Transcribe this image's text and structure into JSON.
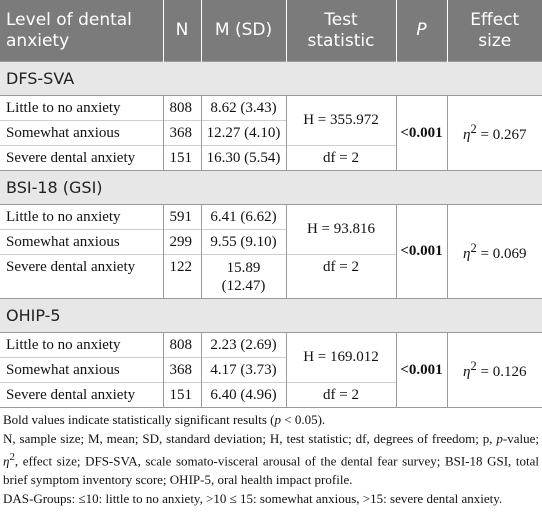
{
  "header": {
    "col_level": "Level of dental anxiety",
    "col_n": "N",
    "col_msd": "M (SD)",
    "col_test": "Test statistic",
    "col_p": "P",
    "col_effect": "Effect size"
  },
  "sections": [
    {
      "title": "DFS-SVA",
      "rows": [
        {
          "level": "Little to no anxiety",
          "n": "808",
          "msd": "8.62 (3.43)"
        },
        {
          "level": "Somewhat anxious",
          "n": "368",
          "msd": "12.27 (4.10)"
        },
        {
          "level": "Severe dental anxiety",
          "n": "151",
          "msd": "16.30 (5.54)"
        }
      ],
      "h": "H = 355.972",
      "df": "df = 2",
      "p": "<0.001",
      "eta_symbol": "η",
      "eta_value": "= 0.267"
    },
    {
      "title": "BSI-18 (GSI)",
      "rows": [
        {
          "level": "Little to no anxiety",
          "n": "591",
          "msd": "6.41 (6.62)"
        },
        {
          "level": "Somewhat anxious",
          "n": "299",
          "msd": "9.55 (9.10)"
        },
        {
          "level": "Severe dental anxiety",
          "n": "122",
          "msd_line1": "15.89",
          "msd_line2": "(12.47)"
        }
      ],
      "h": "H = 93.816",
      "df": "df = 2",
      "p": "<0.001",
      "eta_symbol": "η",
      "eta_value": "= 0.069"
    },
    {
      "title": "OHIP-5",
      "rows": [
        {
          "level": "Little to no anxiety",
          "n": "808",
          "msd": "2.23 (2.69)"
        },
        {
          "level": "Somewhat anxious",
          "n": "368",
          "msd": "4.17 (3.73)"
        },
        {
          "level": "Severe dental anxiety",
          "n": "151",
          "msd": "6.40 (4.96)"
        }
      ],
      "h": "H = 169.012",
      "df": "df = 2",
      "p": "<0.001",
      "eta_symbol": "η",
      "eta_value": "= 0.126"
    }
  ],
  "notes": {
    "bold_note_a": "Bold values indicate statistically significant results (",
    "bold_note_p": "p",
    "bold_note_b": " < 0.05).",
    "abbrev_a": "N, sample size; M, mean; SD, standard deviation; H, test statistic; df, degrees of freedom; p,",
    "abbrev_p": "p",
    "abbrev_b": "-value;",
    "abbrev_eta": "η",
    "abbrev_c": ", effect size; DFS-SVA, scale somato-visceral arousal of the dental fear survey; BSI-18 GSI, total brief symptom inventory score; OHIP-5, oral health impact profile.",
    "groups": "DAS-Groups: ≤10: little to no anxiety, >10 ≤ 15: somewhat anxious, >15: severe dental anxiety."
  }
}
